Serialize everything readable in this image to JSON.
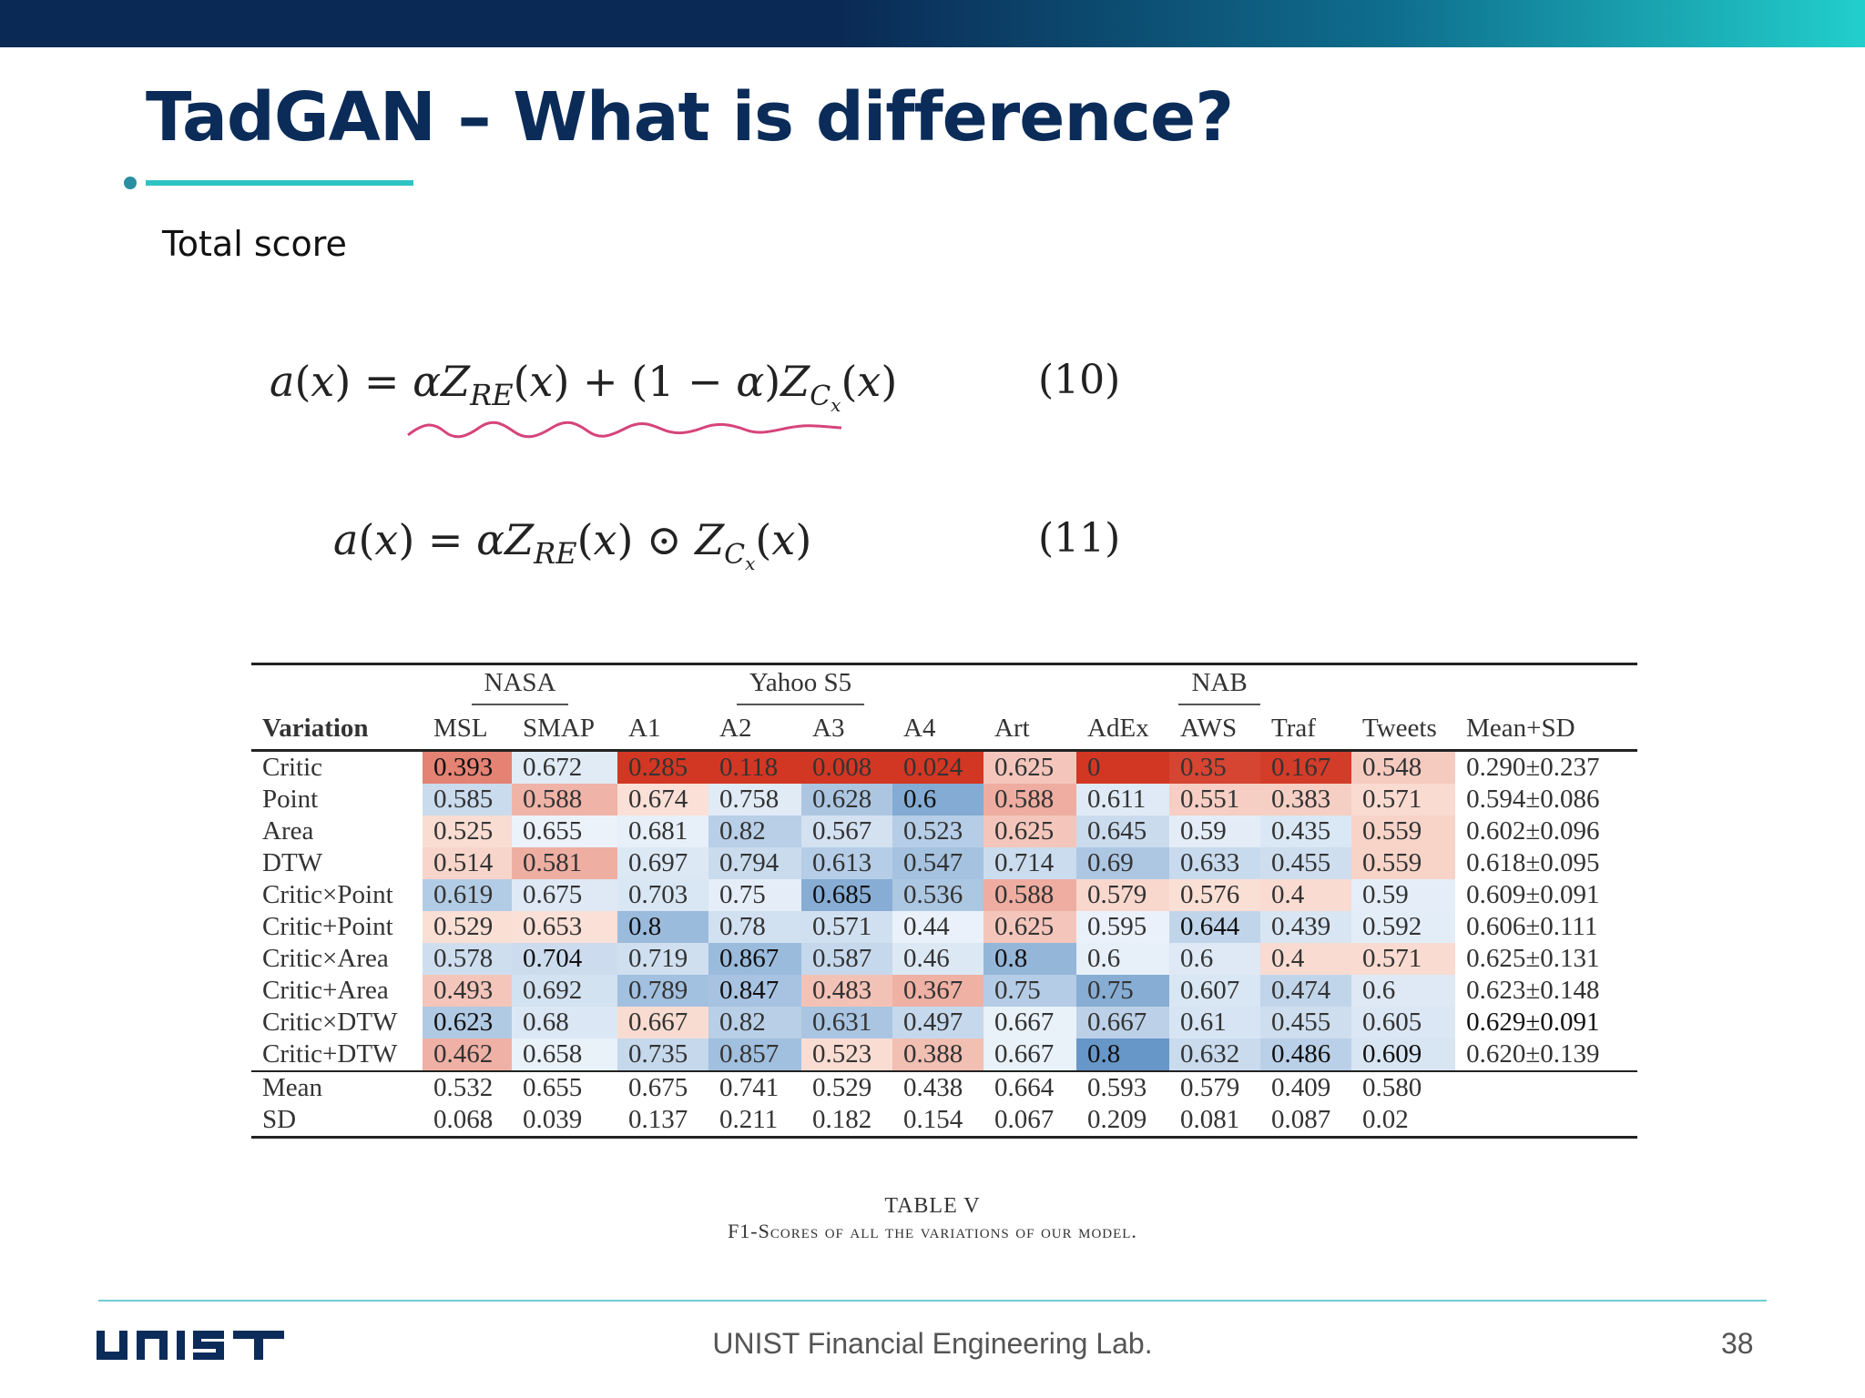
{
  "slide": {
    "title": "TadGAN – What is difference?",
    "subtitle": "Total score",
    "page_number": "38",
    "footer": "UNIST Financial Engineering Lab.",
    "logo_text": "UNIST"
  },
  "equations": {
    "eq10": "a(x) = αZ_RE(x) + (1 − α)Z_Cx(x)",
    "eq10_num": "(10)",
    "eq11": "a(x) = αZ_RE(x) ⊙ Z_Cx(x)",
    "eq11_num": "(11)"
  },
  "table": {
    "groups": [
      "NASA",
      "Yahoo S5",
      "NAB"
    ],
    "headers": [
      "Variation",
      "MSL",
      "SMAP",
      "A1",
      "A2",
      "A3",
      "A4",
      "Art",
      "AdEx",
      "AWS",
      "Traf",
      "Tweets",
      "Mean+SD"
    ],
    "rows": [
      {
        "label": "Critic",
        "cells": [
          "0.393",
          "0.672",
          "0.285",
          "0.118",
          "0.008",
          "0.024",
          "0.625",
          "0",
          "0.35",
          "0.167",
          "0.548",
          "0.290±0.237"
        ]
      },
      {
        "label": "Point",
        "cells": [
          "0.585",
          "0.588",
          "0.674",
          "0.758",
          "0.628",
          "0.6",
          "0.588",
          "0.611",
          "0.551",
          "0.383",
          "0.571",
          "0.594±0.086"
        ]
      },
      {
        "label": "Area",
        "cells": [
          "0.525",
          "0.655",
          "0.681",
          "0.82",
          "0.567",
          "0.523",
          "0.625",
          "0.645",
          "0.59",
          "0.435",
          "0.559",
          "0.602±0.096"
        ]
      },
      {
        "label": "DTW",
        "cells": [
          "0.514",
          "0.581",
          "0.697",
          "0.794",
          "0.613",
          "0.547",
          "0.714",
          "0.69",
          "0.633",
          "0.455",
          "0.559",
          "0.618±0.095"
        ]
      },
      {
        "label": "Critic×Point",
        "cells": [
          "0.619",
          "0.675",
          "0.703",
          "0.75",
          "0.685",
          "0.536",
          "0.588",
          "0.579",
          "0.576",
          "0.4",
          "0.59",
          "0.609±0.091"
        ]
      },
      {
        "label": "Critic+Point",
        "cells": [
          "0.529",
          "0.653",
          "0.8",
          "0.78",
          "0.571",
          "0.44",
          "0.625",
          "0.595",
          "0.644",
          "0.439",
          "0.592",
          "0.606±0.111"
        ]
      },
      {
        "label": "Critic×Area",
        "cells": [
          "0.578",
          "0.704",
          "0.719",
          "0.867",
          "0.587",
          "0.46",
          "0.8",
          "0.6",
          "0.6",
          "0.4",
          "0.571",
          "0.625±0.131"
        ]
      },
      {
        "label": "Critic+Area",
        "cells": [
          "0.493",
          "0.692",
          "0.789",
          "0.847",
          "0.483",
          "0.367",
          "0.75",
          "0.75",
          "0.607",
          "0.474",
          "0.6",
          "0.623±0.148"
        ]
      },
      {
        "label": "Critic×DTW",
        "cells": [
          "0.623",
          "0.68",
          "0.667",
          "0.82",
          "0.631",
          "0.497",
          "0.667",
          "0.667",
          "0.61",
          "0.455",
          "0.605",
          "0.629±0.091"
        ]
      },
      {
        "label": "Critic+DTW",
        "cells": [
          "0.462",
          "0.658",
          "0.735",
          "0.857",
          "0.523",
          "0.388",
          "0.667",
          "0.8",
          "0.632",
          "0.486",
          "0.609",
          "0.620±0.139"
        ]
      }
    ],
    "summary": [
      {
        "label": "Mean",
        "cells": [
          "0.532",
          "0.655",
          "0.675",
          "0.741",
          "0.529",
          "0.438",
          "0.664",
          "0.593",
          "0.579",
          "0.409",
          "0.580",
          ""
        ]
      },
      {
        "label": "SD",
        "cells": [
          "0.068",
          "0.039",
          "0.137",
          "0.211",
          "0.182",
          "0.154",
          "0.067",
          "0.209",
          "0.081",
          "0.087",
          "0.02",
          ""
        ]
      }
    ],
    "caption_title": "TABLE V",
    "caption_text": "F1-Scores of all the variations of our model."
  },
  "colors": {
    "title": "#0b2c59",
    "accent": "#2ec3c3",
    "footer_line": "#6dcfd3"
  }
}
